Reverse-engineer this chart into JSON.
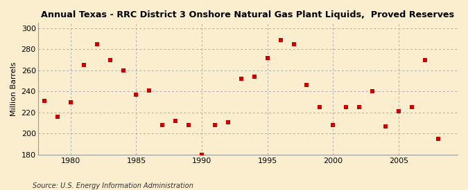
{
  "title": "Annual Texas - RRC District 3 Onshore Natural Gas Plant Liquids, Proved Reserves",
  "ylabel": "Million Barrels",
  "source": "Source: U.S. Energy Information Administration",
  "background_color": "#faeecf",
  "marker_color": "#cc0000",
  "xlim": [
    1977.5,
    2009.5
  ],
  "ylim": [
    180,
    305
  ],
  "yticks": [
    180,
    200,
    220,
    240,
    260,
    280,
    300
  ],
  "xticks": [
    1980,
    1985,
    1990,
    1995,
    2000,
    2005
  ],
  "years": [
    1978,
    1979,
    1980,
    1981,
    1982,
    1983,
    1984,
    1985,
    1986,
    1987,
    1988,
    1989,
    1990,
    1991,
    1992,
    1993,
    1994,
    1995,
    1996,
    1997,
    1998,
    1999,
    2000,
    2001,
    2002,
    2003,
    2004,
    2005,
    2006,
    2007,
    2008
  ],
  "values": [
    231,
    216,
    230,
    265,
    285,
    270,
    260,
    237,
    241,
    208,
    212,
    208,
    180,
    208,
    211,
    252,
    254,
    272,
    289,
    285,
    246,
    225,
    208,
    225,
    225,
    240,
    207,
    221,
    225,
    270,
    195
  ]
}
